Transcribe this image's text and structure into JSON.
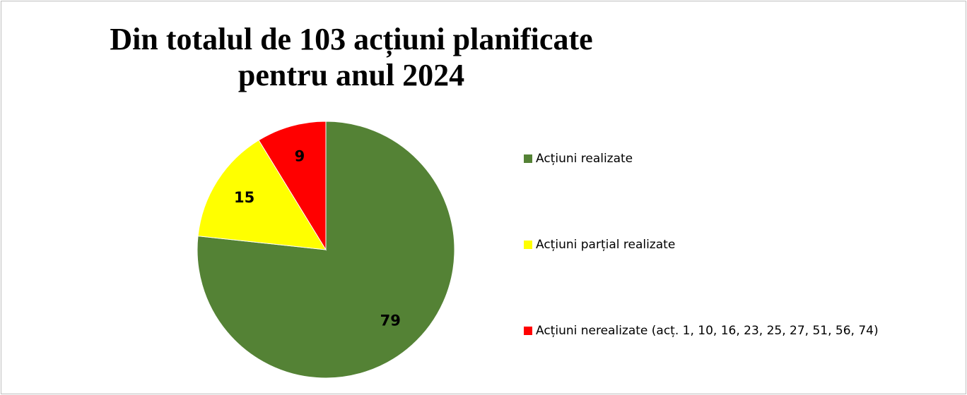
{
  "chart_data": {
    "type": "pie",
    "title": [
      "Din totalul de 103 acțiuni planificate",
      "pentru anul 2024"
    ],
    "categories": [
      "Acțiuni realizate",
      "Acțiuni parțial realizate",
      "Acțiuni nerealizate (acț. 1, 10, 16, 23, 25, 27, 51, 56, 74)"
    ],
    "values": [
      79,
      15,
      9
    ],
    "colors": [
      "#548235",
      "#ffff00",
      "#ff0000"
    ],
    "legend": "right"
  }
}
